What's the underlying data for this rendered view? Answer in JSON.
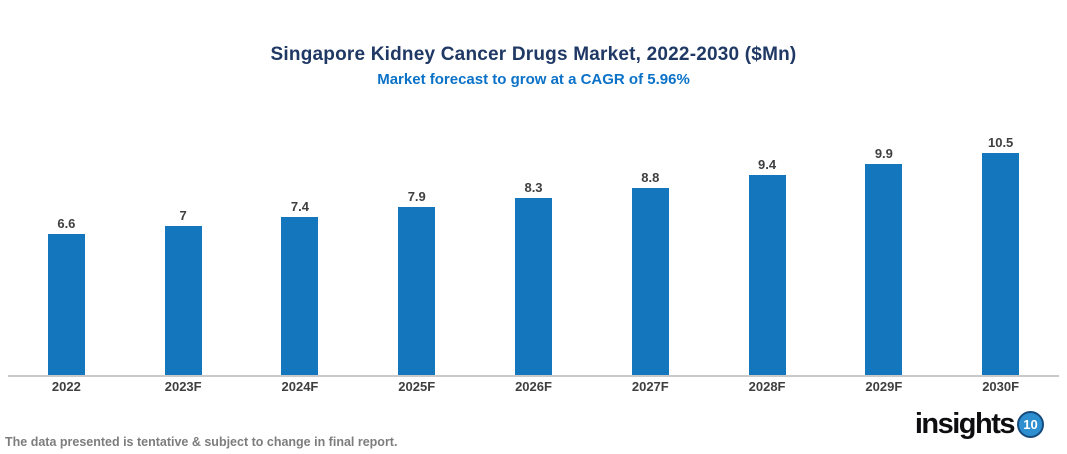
{
  "header": {
    "title": "Singapore Kidney Cancer Drugs Market, 2022-2030 ($Mn)",
    "subtitle": "Market forecast to grow at a CAGR of 5.96%"
  },
  "chart_data": {
    "type": "bar",
    "title": "Singapore Kidney Cancer Drugs Market, 2022-2030 ($Mn)",
    "subtitle": "Market forecast to grow at a CAGR of 5.96%",
    "categories": [
      "2022",
      "2023F",
      "2024F",
      "2025F",
      "2026F",
      "2027F",
      "2028F",
      "2029F",
      "2030F"
    ],
    "values": [
      6.6,
      7,
      7.4,
      7.9,
      8.3,
      8.8,
      9.4,
      9.9,
      10.5
    ],
    "value_labels": [
      "6.6",
      "7",
      "7.4",
      "7.9",
      "8.3",
      "8.8",
      "9.4",
      "9.9",
      "10.5"
    ],
    "xlabel": "",
    "ylabel": "",
    "ylim": [
      0,
      11.25
    ],
    "grid": false,
    "legend": false,
    "bar_color": "#1477BD",
    "cagr_percent": "5.96%"
  },
  "footer": {
    "disclaimer": "The data presented is tentative & subject to change in final report.",
    "logo_text": "insights",
    "logo_badge": "10"
  },
  "colors": {
    "title": "#1F3864",
    "subtitle": "#0B72C8",
    "bar": "#1477BD",
    "data_label": "#3F3F3F",
    "axis_label": "#3F3F3F",
    "axis_line": "#C9C9C9",
    "disclaimer": "#7D7D7D",
    "logo_text": "#0E0E10",
    "logo_badge_bg": "#2E8FD0",
    "logo_badge_text": "#FFFFFF"
  }
}
